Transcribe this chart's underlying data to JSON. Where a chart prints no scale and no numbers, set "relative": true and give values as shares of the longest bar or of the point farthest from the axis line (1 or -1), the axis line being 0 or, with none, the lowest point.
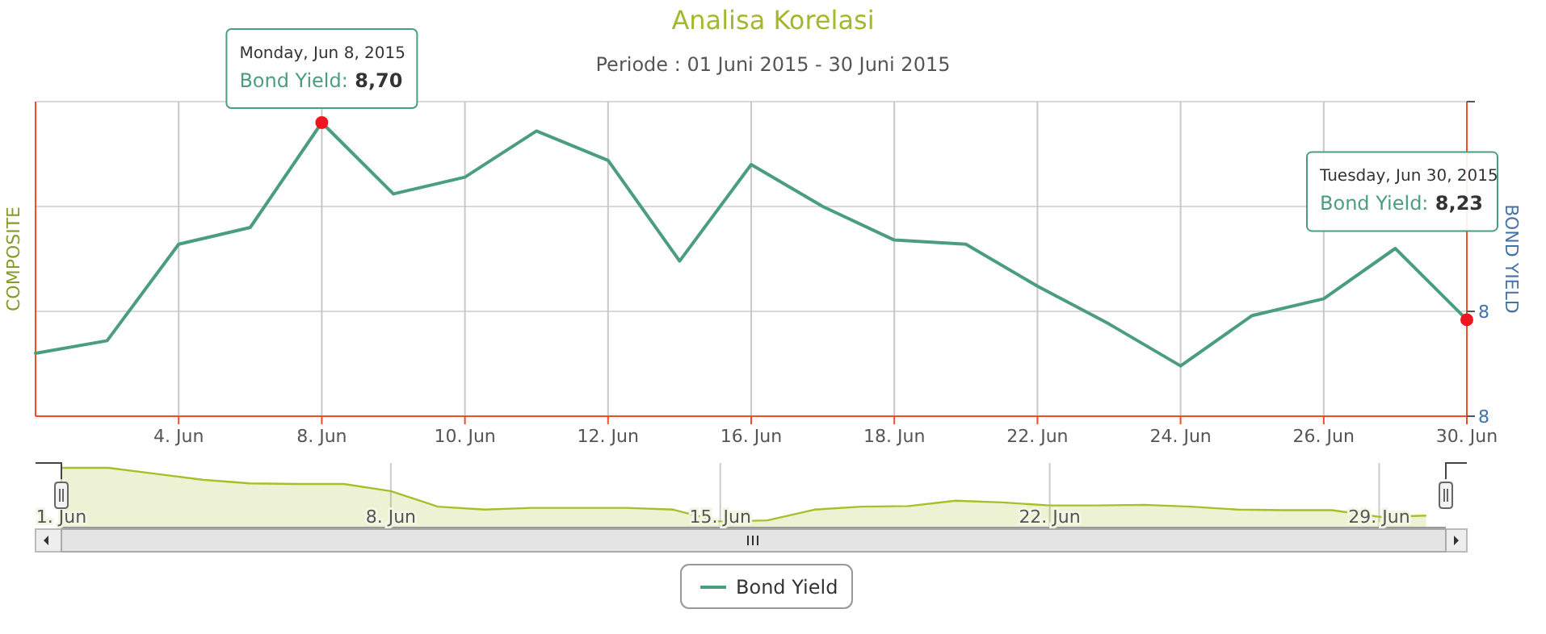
{
  "chart_data": [
    {
      "type": "line",
      "title": "Analisa Korelasi",
      "subtitle": "Periode : 01 Juni 2015 - 30 Juni 2015",
      "ylabel": "COMPOSITE",
      "y2label": "BOND YIELD",
      "categories": [
        null,
        null,
        "4. Jun",
        null,
        "8. Jun",
        null,
        "10. Jun",
        null,
        "12. Jun",
        null,
        "16. Jun",
        null,
        "18. Jun",
        null,
        "22. Jun",
        null,
        "24. Jun",
        null,
        "26. Jun",
        null,
        "30. Jun"
      ],
      "series": [
        {
          "name": "Bond Yield",
          "color": "#4a9e7e",
          "axis": "y2",
          "marker": "none",
          "values": [
            8.15,
            8.18,
            8.41,
            8.45,
            8.7,
            8.53,
            8.57,
            8.68,
            8.61,
            8.37,
            8.6,
            8.5,
            8.42,
            8.41,
            8.31,
            8.22,
            8.12,
            8.24,
            8.28,
            8.4,
            8.23
          ]
        },
        {
          "type": "scatter",
          "color": "#f0141e",
          "axis": "y2",
          "marker": "circle",
          "x": [
            "8. Jun",
            "30. Jun"
          ],
          "values": [
            8.7,
            8.23
          ]
        }
      ],
      "y2lim": [
        8,
        8.75
      ],
      "y2ticks": [
        {
          "value": 8,
          "label": "8"
        },
        {
          "value": 8.25,
          "label": "8"
        },
        {
          "value": 8.5,
          "label": null
        },
        {
          "value": 8.75,
          "label": null
        }
      ],
      "grid": true,
      "legend": "bottom",
      "annotations": [
        "Monday, Jun 8, 2015\nBond Yield: 8,70",
        "Tuesday, Jun 30, 2015\nBond Yield: 8,23"
      ]
    },
    {
      "type": "area",
      "relative": true,
      "tick_labels": "x",
      "grid": "x",
      "x": [
        "2015-06-01",
        "2015-06-02",
        "2015-06-03",
        "2015-06-04",
        "2015-06-05",
        "2015-06-06",
        "2015-06-07",
        "2015-06-08",
        "2015-06-09",
        "2015-06-10",
        "2015-06-11",
        "2015-06-12",
        "2015-06-13",
        "2015-06-14",
        "2015-06-15",
        "2015-06-16",
        "2015-06-17",
        "2015-06-18",
        "2015-06-19",
        "2015-06-20",
        "2015-06-21",
        "2015-06-22",
        "2015-06-23",
        "2015-06-24",
        "2015-06-25",
        "2015-06-26",
        "2015-06-27",
        "2015-06-28",
        "2015-06-29",
        "2015-06-30"
      ],
      "series": [
        {
          "color": "#a8bf2a",
          "values": [
            1.0,
            1.0,
            0.9,
            0.8,
            0.74,
            0.73,
            0.73,
            0.61,
            0.35,
            0.3,
            0.33,
            0.33,
            0.33,
            0.3,
            0.1,
            0.12,
            0.3,
            0.35,
            0.36,
            0.45,
            0.42,
            0.37,
            0.37,
            0.38,
            0.35,
            0.3,
            0.29,
            0.29,
            0.18,
            0.2
          ]
        }
      ],
      "xlim": [
        "2015-06-01",
        "2015-06-30T10:00"
      ],
      "xticks": [
        {
          "value": "2015-06-01",
          "label": "1. Jun"
        },
        {
          "value": "2015-06-08",
          "label": "8. Jun"
        },
        {
          "value": "2015-06-15",
          "label": "15. Jun"
        },
        {
          "value": "2015-06-22",
          "label": "22. Jun"
        },
        {
          "value": "2015-06-29",
          "label": "29. Jun"
        }
      ]
    }
  ]
}
